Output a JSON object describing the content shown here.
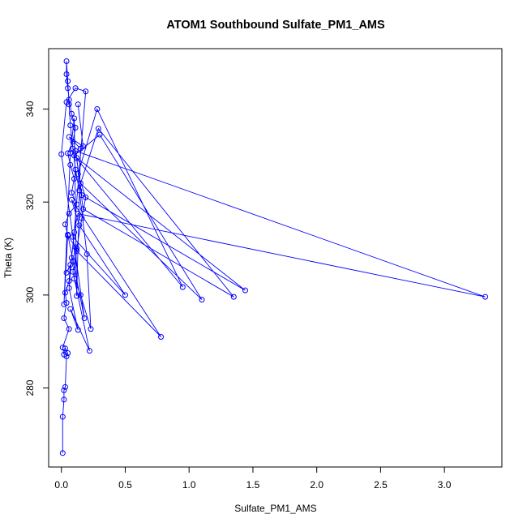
{
  "chart_data": {
    "type": "scatter",
    "title": "ATOM1 Southbound Sulfate_PM1_AMS",
    "xlabel": "Sulfate_PM1_AMS",
    "ylabel": "Theta (K)",
    "xlim": [
      -0.1,
      3.45
    ],
    "ylim": [
      263,
      353
    ],
    "xticks": [
      0.0,
      0.5,
      1.0,
      1.5,
      2.0,
      2.5,
      3.0
    ],
    "xtick_labels": [
      "0.0",
      "0.5",
      "1.0",
      "1.5",
      "2.0",
      "2.5",
      "3.0"
    ],
    "yticks": [
      280,
      300,
      320,
      340
    ],
    "ytick_labels": [
      "280",
      "300",
      "320",
      "340"
    ],
    "grid": false,
    "marker": "open-circle",
    "connected": true,
    "color": "#0000ff",
    "series": [
      {
        "points": [
          [
            0.01,
            266.0
          ],
          [
            0.01,
            273.8
          ],
          [
            0.02,
            277.5
          ],
          [
            0.02,
            279.5
          ],
          [
            0.03,
            280.2
          ],
          [
            0.04,
            286.8
          ],
          [
            0.05,
            287.5
          ],
          [
            0.03,
            288.5
          ],
          [
            0.02,
            287.2
          ],
          [
            0.01,
            288.7
          ],
          [
            0.06,
            292.7
          ],
          [
            0.02,
            295.0
          ],
          [
            0.04,
            298.3
          ],
          [
            0.03,
            300.5
          ],
          [
            0.06,
            303.0
          ],
          [
            0.07,
            306.5
          ],
          [
            0.04,
            304.8
          ],
          [
            0.09,
            307.2
          ],
          [
            0.11,
            310.3
          ],
          [
            0.05,
            312.8
          ],
          [
            0.03,
            315.2
          ],
          [
            0.06,
            317.5
          ],
          [
            0.12,
            319.5
          ],
          [
            0.08,
            322.0
          ],
          [
            0.1,
            325.0
          ],
          [
            0.07,
            328.0
          ],
          [
            0.05,
            330.5
          ],
          [
            0.09,
            333.0
          ],
          [
            0.11,
            336.0
          ],
          [
            0.08,
            339.0
          ],
          [
            0.06,
            342.0
          ],
          [
            0.05,
            344.5
          ],
          [
            0.04,
            347.5
          ],
          [
            0.04,
            350.3
          ],
          [
            0.05,
            346.0
          ],
          [
            0.06,
            341.0
          ],
          [
            0.07,
            336.5
          ],
          [
            0.09,
            331.5
          ],
          [
            0.11,
            327.0
          ],
          [
            0.14,
            322.5
          ],
          [
            0.2,
            308.8
          ],
          [
            0.23,
            292.7
          ],
          [
            0.15,
            300.0
          ],
          [
            0.1,
            303.5
          ],
          [
            0.12,
            310.0
          ],
          [
            0.16,
            316.5
          ],
          [
            0.19,
            321.0
          ],
          [
            0.13,
            326.0
          ],
          [
            0.28,
            340.0
          ],
          [
            0.95,
            301.7
          ],
          [
            0.1,
            330.0
          ],
          [
            0.3,
            334.5
          ],
          [
            1.1,
            299.0
          ],
          [
            0.15,
            324.0
          ],
          [
            0.29,
            335.8
          ],
          [
            1.35,
            299.6
          ],
          [
            0.17,
            318.5
          ],
          [
            0.12,
            329.5
          ],
          [
            1.44,
            301.0
          ],
          [
            0.16,
            321.5
          ],
          [
            0.11,
            331.0
          ],
          [
            3.32,
            299.6
          ],
          [
            0.13,
            317.5
          ],
          [
            0.09,
            312.5
          ],
          [
            0.5,
            300.0
          ],
          [
            0.14,
            315.0
          ],
          [
            0.08,
            320.5
          ],
          [
            0.78,
            291.0
          ],
          [
            0.12,
            309.5
          ],
          [
            0.09,
            305.0
          ],
          [
            0.22,
            288.0
          ],
          [
            0.07,
            297.0
          ],
          [
            0.13,
            292.5
          ],
          [
            0.06,
            301.5
          ],
          [
            0.08,
            308.0
          ],
          [
            0.1,
            313.5
          ],
          [
            0.19,
            343.8
          ],
          [
            0.11,
            344.5
          ],
          [
            0.04,
            341.5
          ],
          [
            0.0,
            330.3
          ],
          [
            0.18,
            295.0
          ],
          [
            0.05,
            313.0
          ],
          [
            0.02,
            298.0
          ],
          [
            0.07,
            330.5
          ],
          [
            0.1,
            338.0
          ],
          [
            0.12,
            299.8
          ],
          [
            0.15,
            331.5
          ],
          [
            0.06,
            334.0
          ],
          [
            0.17,
            332.0
          ],
          [
            0.13,
            341.0
          ]
        ]
      }
    ]
  }
}
